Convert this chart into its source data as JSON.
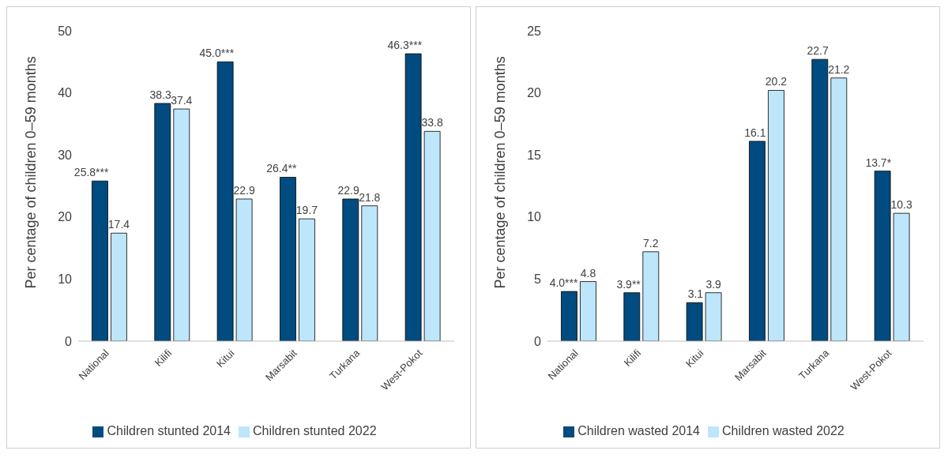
{
  "chart_data": [
    {
      "type": "bar",
      "categories": [
        "National",
        "Kilifi",
        "Kitui",
        "Marsabit",
        "Turkana",
        "West-Pokot"
      ],
      "ylabel": "Per centage of children 0–59 months",
      "ylim": [
        0,
        50
      ],
      "yticks": [
        0,
        10,
        20,
        30,
        40,
        50
      ],
      "grid": false,
      "legend": "bottom",
      "series": [
        {
          "name": "Children stunted 2014",
          "color": "#004b7f",
          "values": [
            25.8,
            38.3,
            45.0,
            26.4,
            22.9,
            46.3
          ],
          "value_labels": [
            "25.8***",
            "38.3",
            "45.0***",
            "26.4**",
            "22.9",
            "46.3***"
          ]
        },
        {
          "name": "Children stunted 2022",
          "color": "#bde6fb",
          "values": [
            17.4,
            37.4,
            22.9,
            19.7,
            21.8,
            33.8
          ],
          "value_labels": [
            "17.4",
            "37.4",
            "22.9",
            "19.7",
            "21.8",
            "33.8"
          ]
        }
      ]
    },
    {
      "type": "bar",
      "categories": [
        "National",
        "Kilifi",
        "Kitui",
        "Marsabit",
        "Turkana",
        "West-Pokot"
      ],
      "ylabel": "Per centage of children 0–59 months",
      "ylim": [
        0,
        25
      ],
      "yticks": [
        0,
        5,
        10,
        15,
        20,
        25
      ],
      "grid": false,
      "legend": "bottom",
      "series": [
        {
          "name": "Children wasted 2014",
          "color": "#004b7f",
          "values": [
            4.0,
            3.9,
            3.1,
            16.1,
            22.7,
            13.7
          ],
          "value_labels": [
            "4.0***",
            "3.9**",
            "3.1",
            "16.1",
            "22.7",
            "13.7*"
          ]
        },
        {
          "name": "Children wasted 2022",
          "color": "#bde6fb",
          "values": [
            4.8,
            7.2,
            3.9,
            20.2,
            21.2,
            10.3
          ],
          "value_labels": [
            "4.8",
            "7.2",
            "3.9",
            "20.2",
            "21.2",
            "10.3"
          ]
        }
      ]
    }
  ]
}
